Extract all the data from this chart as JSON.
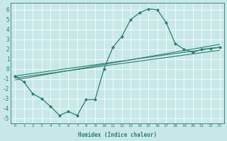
{
  "xlabel": "Humidex (Indice chaleur)",
  "background_color": "#c8e8e8",
  "grid_color": "#ffffff",
  "line_color": "#2e7d6e",
  "xlim": [
    -0.5,
    23.5
  ],
  "ylim": [
    -5.5,
    6.7
  ],
  "xticks": [
    0,
    1,
    2,
    3,
    4,
    5,
    6,
    7,
    8,
    9,
    10,
    11,
    12,
    13,
    14,
    15,
    16,
    17,
    18,
    19,
    20,
    21,
    22,
    23
  ],
  "yticks": [
    -5,
    -4,
    -3,
    -2,
    -1,
    0,
    1,
    2,
    3,
    4,
    5,
    6
  ],
  "series": [
    {
      "x": [
        0,
        1,
        2,
        3,
        4,
        5,
        6,
        7,
        8,
        9,
        10,
        11,
        12,
        13,
        14,
        15,
        16,
        17,
        18,
        19,
        20,
        21,
        22,
        23
      ],
      "y": [
        -0.7,
        -1.3,
        -2.5,
        -3.0,
        -3.8,
        -4.7,
        -4.3,
        -4.7,
        -3.1,
        -3.1,
        0.0,
        2.2,
        3.3,
        5.0,
        5.7,
        6.1,
        6.0,
        4.7,
        2.6,
        2.0,
        1.7,
        2.0,
        2.1,
        2.2
      ],
      "marker": "D",
      "markersize": 2,
      "linewidth": 0.9
    },
    {
      "x": [
        0,
        23
      ],
      "y": [
        -0.7,
        2.2
      ],
      "marker": null,
      "linewidth": 0.8
    },
    {
      "x": [
        0,
        23
      ],
      "y": [
        -0.9,
        1.9
      ],
      "marker": null,
      "linewidth": 0.8
    },
    {
      "x": [
        0,
        23
      ],
      "y": [
        -1.1,
        2.5
      ],
      "marker": null,
      "linewidth": 0.8
    }
  ]
}
